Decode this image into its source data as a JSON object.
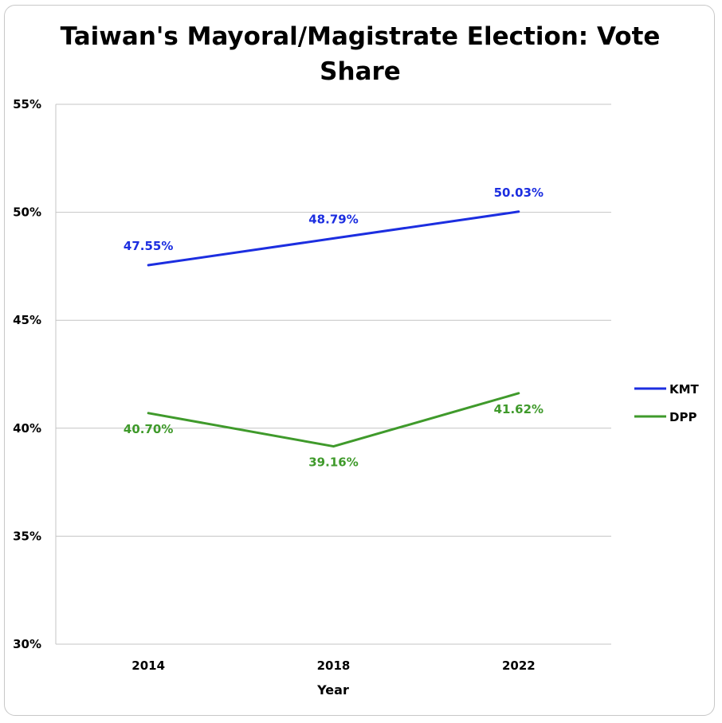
{
  "chart_data": {
    "type": "line",
    "title_lines": [
      "Taiwan's Mayoral/Magistrate Election: Vote",
      "Share"
    ],
    "xlabel": "Year",
    "ylabel": "",
    "categories": [
      "2014",
      "2018",
      "2022"
    ],
    "ylim": [
      30,
      55
    ],
    "yticks": [
      30,
      35,
      40,
      45,
      50,
      55
    ],
    "ytick_labels": [
      "30%",
      "35%",
      "40%",
      "45%",
      "50%",
      "55%"
    ],
    "grid": true,
    "legend_position": "right",
    "series": [
      {
        "name": "KMT",
        "color": "#1c2ee0",
        "values": [
          47.55,
          48.79,
          50.03
        ],
        "data_labels": [
          "47.55%",
          "48.79%",
          "50.03%"
        ],
        "label_position": "above"
      },
      {
        "name": "DPP",
        "color": "#3f9a2b",
        "values": [
          40.7,
          39.16,
          41.62
        ],
        "data_labels": [
          "40.70%",
          "39.16%",
          "41.62%"
        ],
        "label_position": "below"
      }
    ]
  }
}
